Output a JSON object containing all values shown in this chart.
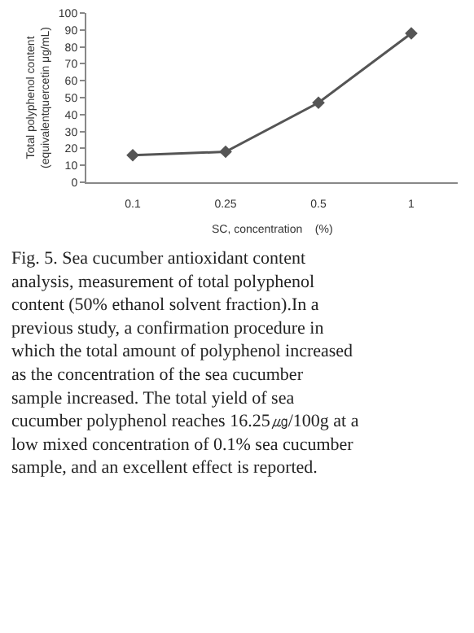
{
  "chart_data": {
    "type": "line",
    "xlabel": "SC, concentration    (%)",
    "ylabel": "Total polyphenol content\n(equivalentquercetin μg/mL)",
    "categories": [
      "0.1",
      "0.25",
      "0.5",
      "1"
    ],
    "series": [
      {
        "color": "#555555",
        "values": [
          16,
          18,
          47,
          88
        ]
      }
    ],
    "ylim": [
      0,
      100
    ],
    "yticks": [
      0,
      10,
      20,
      30,
      40,
      50,
      60,
      70,
      80,
      90,
      100
    ],
    "marker": "diamond",
    "line_style": "solid",
    "legend": false,
    "annotations": [
      "Fig. 5. Sea cucumber antioxidant content analysis, measurement of total polyphenol content (50% ethanol solvent fraction).In a previous study, a confirmation procedure in which the total amount of polyphenol increased as the concentration of the sea cucumber sample increased. The total yield of sea cucumber polyphenol reaches 16.25㎍/100g at a low mixed concentration of 0.1% sea cucumber sample, and an excellent effect is reported."
    ]
  }
}
